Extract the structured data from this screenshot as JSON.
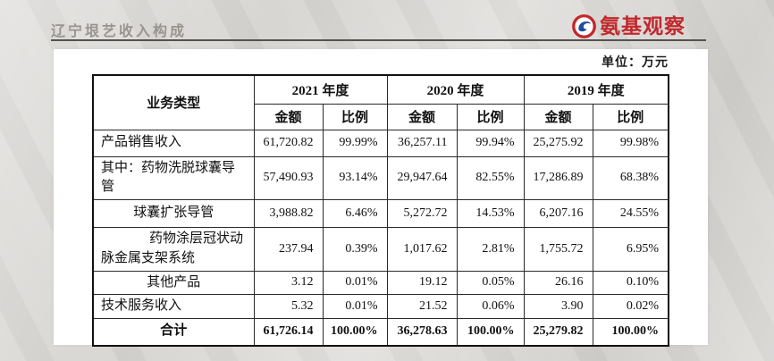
{
  "header": {
    "title": "辽宁垠艺收入构成",
    "logo_text": "氨基观察"
  },
  "unit_label": "单位：万元",
  "table": {
    "corner_header": "业务类型",
    "year_headers": [
      "2021 年度",
      "2020 年度",
      "2019 年度"
    ],
    "sub_headers": [
      "金额",
      "比例"
    ],
    "rows": [
      {
        "name": "产品销售收入",
        "align": "left",
        "bold": false,
        "values": [
          "61,720.82",
          "99.99%",
          "36,257.11",
          "99.94%",
          "25,275.92",
          "99.98%"
        ]
      },
      {
        "name": "其中：药物洗脱球囊导管",
        "align": "left",
        "bold": false,
        "values": [
          "57,490.93",
          "93.14%",
          "29,947.64",
          "82.55%",
          "17,286.89",
          "68.38%"
        ]
      },
      {
        "name": "球囊扩张导管",
        "align": "center",
        "bold": false,
        "values": [
          "3,988.82",
          "6.46%",
          "5,272.72",
          "14.53%",
          "6,207.16",
          "24.55%"
        ]
      },
      {
        "name": "药物涂层冠状动脉金属支架系统",
        "align": "indent",
        "bold": false,
        "values": [
          "237.94",
          "0.39%",
          "1,017.62",
          "2.81%",
          "1,755.72",
          "6.95%"
        ]
      },
      {
        "name": "其他产品",
        "align": "center",
        "bold": false,
        "values": [
          "3.12",
          "0.01%",
          "19.12",
          "0.05%",
          "26.16",
          "0.10%"
        ]
      },
      {
        "name": "技术服务收入",
        "align": "left",
        "bold": false,
        "values": [
          "5.32",
          "0.01%",
          "21.52",
          "0.06%",
          "3.90",
          "0.02%"
        ]
      },
      {
        "name": "合计",
        "align": "center",
        "bold": true,
        "values": [
          "61,726.14",
          "100.00%",
          "36,278.63",
          "100.00%",
          "25,279.82",
          "100.00%"
        ]
      }
    ]
  },
  "colors": {
    "logo_red": "#c2282d",
    "logo_blue": "#1d4e9b",
    "title_gray": "#98948f",
    "rule_gray": "#55524f"
  }
}
